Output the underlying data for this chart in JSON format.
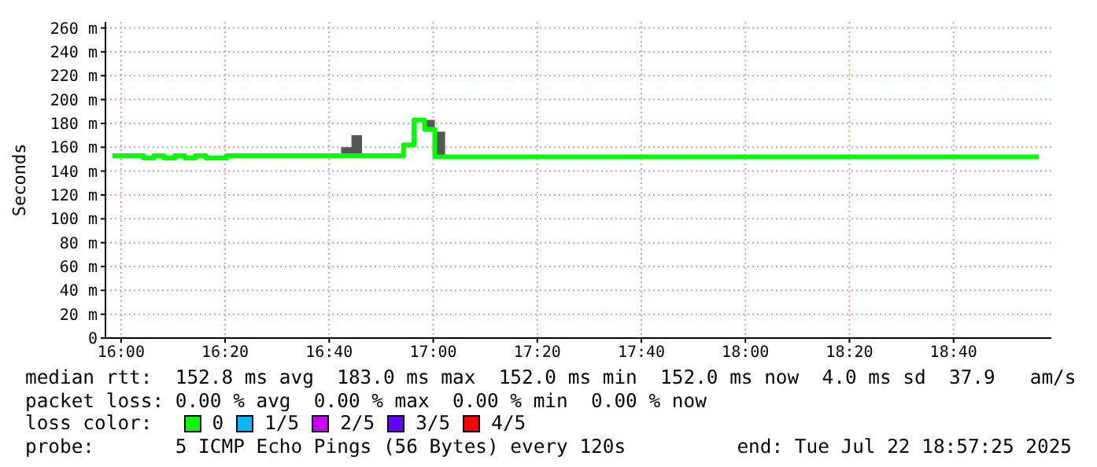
{
  "chart_data": {
    "type": "step",
    "ylabel": "Seconds",
    "x": [
      15.972,
      16.072,
      16.105,
      16.138,
      16.172,
      16.205,
      16.238,
      16.272,
      16.338,
      16.705,
      16.738,
      16.772,
      16.905,
      16.938,
      16.972,
      17.005,
      17.038,
      18.94
    ],
    "series": [
      {
        "color": "#00ff00",
        "values": [
          153,
          151,
          153,
          151,
          153,
          151,
          153,
          151,
          153,
          153,
          153,
          153,
          162,
          183,
          175,
          152,
          152,
          152
        ],
        "lower": [
          153,
          151,
          153,
          151,
          153,
          151,
          153,
          151,
          153,
          153,
          153,
          153,
          162,
          183,
          175,
          152,
          152,
          152
        ],
        "upper": [
          153,
          151,
          153,
          151,
          153,
          151,
          153,
          151,
          153,
          160,
          170,
          153,
          162,
          183,
          183,
          173,
          152,
          152
        ]
      }
    ],
    "xlim": [
      15.95,
      18.98
    ],
    "xticks": [
      {
        "value": 16,
        "label": "16:00"
      },
      {
        "value": 16.3333,
        "label": "16:20"
      },
      {
        "value": 16.6667,
        "label": "16:40"
      },
      {
        "value": 17,
        "label": "17:00"
      },
      {
        "value": 17.3333,
        "label": "17:20"
      },
      {
        "value": 17.6667,
        "label": "17:40"
      },
      {
        "value": 18,
        "label": "18:00"
      },
      {
        "value": 18.3333,
        "label": "18:20"
      },
      {
        "value": 18.6667,
        "label": "18:40"
      }
    ],
    "ylim": [
      0,
      265
    ],
    "yticks": [
      0,
      {
        "value": 20,
        "label": "20 m"
      },
      {
        "value": 40,
        "label": "40 m"
      },
      {
        "value": 60,
        "label": "60 m"
      },
      {
        "value": 80,
        "label": "80 m"
      },
      {
        "value": 100,
        "label": "100 m"
      },
      {
        "value": 120,
        "label": "120 m"
      },
      {
        "value": 140,
        "label": "140 m"
      },
      {
        "value": 160,
        "label": "160 m"
      },
      {
        "value": 180,
        "label": "180 m"
      },
      {
        "value": 200,
        "label": "200 m"
      },
      {
        "value": 220,
        "label": "220 m"
      },
      {
        "value": 240,
        "label": "240 m"
      },
      {
        "value": 260,
        "label": "260 m"
      }
    ],
    "grid": true,
    "annotations": [
      "median rtt:  152.8 ms avg  183.0 ms max  152.0 ms min  152.0 ms now  4.0 ms sd  37.9   am/s",
      "packet loss: 0.00 % avg  0.00 % max  0.00 % min  0.00 % now",
      "loss color:",
      "0",
      "1/5",
      "2/5",
      "3/5",
      "4/5",
      "probe:       5 ICMP Echo Pings (56 Bytes) every 120s",
      "end: Tue Jul 22 18:57:25 2025"
    ]
  }
}
